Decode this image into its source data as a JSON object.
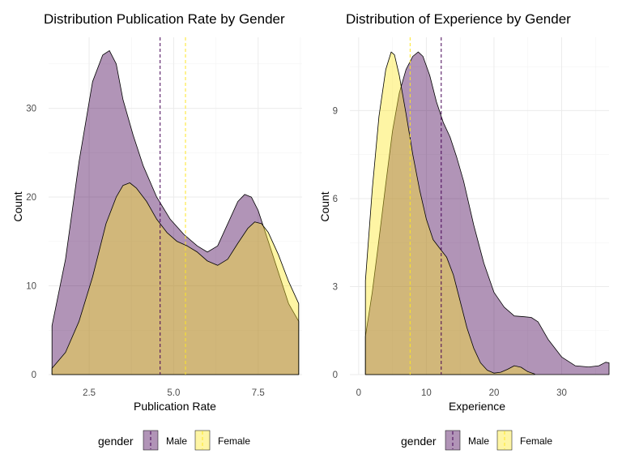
{
  "chart_data": [
    {
      "type": "area",
      "title": "Distribution Publication Rate by Gender",
      "xlabel": "Publication Rate",
      "ylabel": "Count",
      "xlim": [
        1.3,
        8.8
      ],
      "ylim": [
        0,
        38
      ],
      "x_ticks": [
        2.5,
        5.0,
        7.5
      ],
      "x_tick_labels": [
        "2.5",
        "5.0",
        "7.5"
      ],
      "y_ticks": [
        0,
        10,
        20,
        30
      ],
      "y_tick_labels": [
        "0",
        "10",
        "20",
        "30"
      ],
      "series": [
        {
          "name": "Male",
          "color": "#440154",
          "mean": 4.6,
          "x": [
            1.4,
            1.8,
            2.2,
            2.6,
            2.9,
            3.1,
            3.3,
            3.5,
            3.8,
            4.1,
            4.5,
            4.9,
            5.3,
            5.7,
            6.0,
            6.3,
            6.6,
            6.9,
            7.1,
            7.3,
            7.5,
            7.8,
            8.1,
            8.4,
            8.7
          ],
          "values": [
            5.5,
            13,
            24,
            33,
            36,
            36.5,
            35,
            31,
            27,
            23.5,
            20,
            17.5,
            15.8,
            14.5,
            13.8,
            14.5,
            17,
            19.5,
            20.3,
            20,
            18.5,
            15,
            11.5,
            8,
            6
          ]
        },
        {
          "name": "Female",
          "color": "#FDE725",
          "mean": 5.35,
          "x": [
            1.4,
            1.8,
            2.2,
            2.6,
            3.0,
            3.3,
            3.5,
            3.7,
            3.9,
            4.2,
            4.5,
            4.8,
            5.1,
            5.4,
            5.7,
            6.0,
            6.3,
            6.6,
            6.9,
            7.2,
            7.4,
            7.6,
            7.8,
            8.1,
            8.4,
            8.7
          ],
          "values": [
            0.7,
            2.5,
            6,
            11,
            17,
            20,
            21.3,
            21.6,
            21,
            19.5,
            17.5,
            16,
            15,
            14.5,
            13.8,
            12.8,
            12.3,
            13,
            14.8,
            16.5,
            17.2,
            17,
            16,
            13.5,
            10.5,
            8
          ]
        }
      ]
    },
    {
      "type": "area",
      "title": "Distribution of Experience by Gender",
      "xlabel": "Experience",
      "ylabel": "Count",
      "xlim": [
        -1.3,
        37
      ],
      "ylim": [
        0,
        11.5
      ],
      "x_ticks": [
        0,
        10,
        20,
        30
      ],
      "x_tick_labels": [
        "0",
        "10",
        "20",
        "30"
      ],
      "y_ticks": [
        0,
        3,
        6,
        9
      ],
      "y_tick_labels": [
        "0",
        "3",
        "6",
        "9"
      ],
      "series": [
        {
          "name": "Male",
          "color": "#440154",
          "mean": 12.2,
          "x": [
            1,
            2,
            3,
            4,
            5,
            6,
            7,
            8,
            8.8,
            9.5,
            10.5,
            11.5,
            12.5,
            13.5,
            14.5,
            15.5,
            17,
            18.5,
            20,
            21.5,
            23,
            24.5,
            25.5,
            26.5,
            28,
            30,
            32,
            34,
            35.5,
            36.5,
            37
          ],
          "values": [
            1.3,
            2.8,
            4.6,
            6.5,
            8.3,
            9.6,
            10.4,
            10.85,
            11.0,
            10.85,
            10.2,
            9.3,
            8.6,
            8.1,
            7.4,
            6.6,
            5.1,
            3.8,
            2.8,
            2.3,
            2.0,
            1.97,
            1.95,
            1.8,
            1.2,
            0.6,
            0.3,
            0.26,
            0.3,
            0.42,
            0.4
          ]
        },
        {
          "name": "Female",
          "color": "#FDE725",
          "mean": 7.6,
          "x": [
            1,
            2,
            3,
            4,
            4.8,
            5.3,
            6,
            7,
            8,
            9,
            10,
            11,
            12,
            13,
            14,
            15,
            16,
            17,
            18,
            19,
            20,
            21,
            22,
            23,
            24,
            25,
            26
          ],
          "values": [
            3.2,
            6.3,
            8.8,
            10.4,
            11.0,
            10.9,
            10.2,
            8.9,
            7.5,
            6.3,
            5.3,
            4.6,
            4.3,
            4.0,
            3.4,
            2.5,
            1.6,
            0.9,
            0.4,
            0.15,
            0.05,
            0.08,
            0.18,
            0.3,
            0.25,
            0.1,
            0.02
          ]
        }
      ]
    }
  ],
  "legend": {
    "title": "gender",
    "items": [
      {
        "label": "Male",
        "color": "#440154"
      },
      {
        "label": "Female",
        "color": "#FDE725"
      }
    ]
  }
}
